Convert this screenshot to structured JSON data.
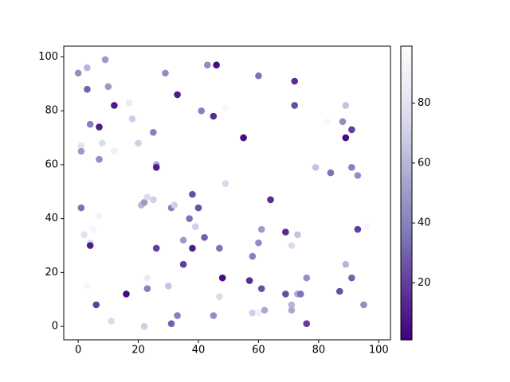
{
  "chart_data": {
    "type": "scatter",
    "x": [
      0,
      3,
      9,
      3,
      10,
      4,
      7,
      12,
      17,
      18,
      1,
      1,
      8,
      12,
      7,
      20,
      25,
      29,
      33,
      43,
      46,
      41,
      45,
      60,
      72,
      72,
      83,
      88,
      89,
      91,
      89,
      55,
      49,
      26,
      26,
      49,
      79,
      84,
      91,
      93,
      1,
      2,
      4,
      4,
      5,
      7,
      21,
      22,
      23,
      25,
      31,
      32,
      38,
      40,
      37,
      39,
      35,
      42,
      38,
      35,
      26,
      47,
      61,
      60,
      64,
      69,
      71,
      73,
      93,
      96,
      58,
      57,
      48,
      61,
      69,
      73,
      74,
      76,
      71,
      71,
      76,
      87,
      89,
      91,
      95,
      58,
      60,
      62,
      47,
      45,
      33,
      31,
      30,
      23,
      23,
      16,
      6,
      11,
      22,
      3
    ],
    "y": [
      94,
      96,
      99,
      88,
      89,
      75,
      74,
      82,
      83,
      77,
      67,
      65,
      68,
      65,
      62,
      68,
      72,
      94,
      86,
      97,
      97,
      80,
      78,
      93,
      91,
      82,
      76,
      76,
      82,
      73,
      70,
      70,
      81,
      60,
      59,
      53,
      59,
      57,
      59,
      56,
      44,
      34,
      31,
      30,
      36,
      41,
      45,
      46,
      48,
      47,
      44,
      45,
      49,
      44,
      40,
      37,
      32,
      33,
      29,
      23,
      29,
      29,
      36,
      31,
      47,
      35,
      30,
      34,
      36,
      37,
      26,
      17,
      18,
      14,
      12,
      12,
      12,
      18,
      8,
      6,
      1,
      13,
      23,
      18,
      8,
      5,
      5,
      6,
      11,
      4,
      4,
      1,
      15,
      18,
      14,
      12,
      8,
      2,
      0,
      15
    ],
    "c": [
      45,
      60,
      50,
      30,
      50,
      40,
      10,
      10,
      85,
      70,
      80,
      50,
      75,
      90,
      45,
      70,
      40,
      45,
      10,
      45,
      5,
      40,
      15,
      35,
      15,
      25,
      95,
      45,
      65,
      20,
      5,
      5,
      95,
      55,
      10,
      75,
      65,
      35,
      40,
      45,
      35,
      80,
      75,
      10,
      95,
      95,
      60,
      50,
      75,
      70,
      40,
      70,
      25,
      25,
      35,
      70,
      50,
      30,
      10,
      20,
      20,
      35,
      50,
      45,
      15,
      15,
      75,
      65,
      20,
      95,
      40,
      15,
      5,
      25,
      25,
      55,
      35,
      45,
      60,
      55,
      20,
      25,
      60,
      30,
      45,
      70,
      90,
      55,
      75,
      45,
      40,
      30,
      65,
      85,
      40,
      5,
      20,
      75,
      70,
      95
    ],
    "xlim": [
      -4.8,
      103.9
    ],
    "ylim": [
      -5,
      104
    ],
    "xticks": [
      0,
      20,
      40,
      60,
      80,
      100
    ],
    "yticks": [
      0,
      20,
      40,
      60,
      80,
      100
    ],
    "clim": [
      1,
      99
    ],
    "cticks": [
      20,
      40,
      60,
      80
    ],
    "cmap": "Purples_r"
  }
}
